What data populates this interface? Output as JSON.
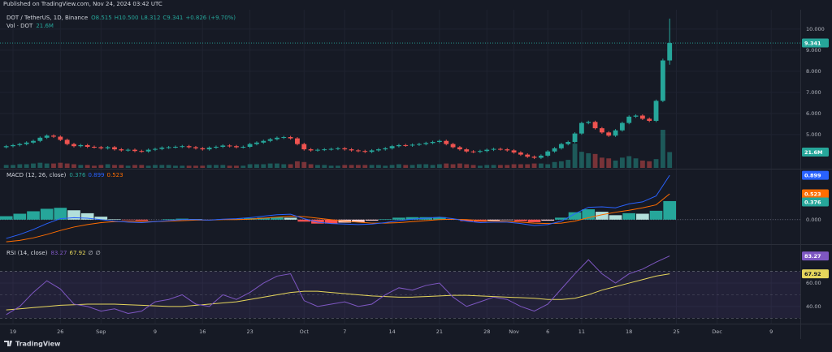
{
  "chart_data": [
    {
      "type": "candlestick",
      "header": "Published on TradingView.com, Nov 24, 2024 03:42 UTC",
      "title": "DOT / TetherUS, 1D, Binance",
      "ohlc_legend": [
        "O8.515",
        "H10.500",
        "L8.312",
        "C9.341",
        "+0.826 (+9.70%)"
      ],
      "footer": "TradingView",
      "xlim": [
        -0.92,
        117.3
      ],
      "xticks": [
        {
          "value": 1,
          "label": "19"
        },
        {
          "value": 8,
          "label": "26"
        },
        {
          "value": 14,
          "label": "Sep"
        },
        {
          "value": 22,
          "label": "9"
        },
        {
          "value": 29,
          "label": "16"
        },
        {
          "value": 36,
          "label": "23"
        },
        {
          "value": 44,
          "label": "Oct"
        },
        {
          "value": 50,
          "label": "7"
        },
        {
          "value": 57,
          "label": "14"
        },
        {
          "value": 64,
          "label": "21"
        },
        {
          "value": 71,
          "label": "28"
        },
        {
          "value": 75,
          "label": "Nov"
        },
        {
          "value": 80,
          "label": "6"
        },
        {
          "value": 85,
          "label": "11"
        },
        {
          "value": 92,
          "label": "18"
        },
        {
          "value": 99,
          "label": "25"
        },
        {
          "value": 105,
          "label": "Dec"
        },
        {
          "value": 113,
          "label": "9"
        }
      ],
      "ylim": [
        3.42,
        10.92
      ],
      "yticks": [
        {
          "value": 5,
          "label": "5.000"
        },
        {
          "value": 6,
          "label": "6.000"
        },
        {
          "value": 7,
          "label": "7.000"
        },
        {
          "value": 8,
          "label": "8.000"
        },
        {
          "value": 9,
          "label": "9.000"
        },
        {
          "value": 10,
          "label": "10.000"
        }
      ],
      "up_color": "#26a69a",
      "down_color": "#ef5350",
      "open": [
        4.4,
        4.45,
        4.5,
        4.55,
        4.62,
        4.7,
        4.85,
        4.95,
        4.9,
        4.75,
        4.55,
        4.45,
        4.5,
        4.42,
        4.4,
        4.35,
        4.4,
        4.3,
        4.25,
        4.28,
        4.22,
        4.2,
        4.28,
        4.32,
        4.38,
        4.4,
        4.42,
        4.45,
        4.4,
        4.35,
        4.3,
        4.38,
        4.42,
        4.48,
        4.45,
        4.4,
        4.42,
        4.55,
        4.62,
        4.7,
        4.78,
        4.85,
        4.88,
        4.82,
        4.55,
        4.3,
        4.25,
        4.28,
        4.3,
        4.32,
        4.35,
        4.3,
        4.25,
        4.22,
        4.18,
        4.25,
        4.3,
        4.35,
        4.45,
        4.5,
        4.48,
        4.52,
        4.55,
        4.6,
        4.65,
        4.7,
        4.55,
        4.4,
        4.3,
        4.2,
        4.18,
        4.22,
        4.28,
        4.32,
        4.3,
        4.25,
        4.15,
        4.05,
        3.95,
        3.9,
        4.0,
        4.2,
        4.35,
        4.55,
        4.65,
        5.05,
        5.55,
        5.6,
        5.3,
        5.1,
        4.95,
        5.2,
        5.55,
        5.85,
        5.9,
        5.75,
        5.65,
        6.6,
        8.515
      ],
      "high": [
        4.51,
        4.56,
        4.61,
        4.68,
        4.76,
        4.91,
        5.01,
        5.01,
        4.96,
        4.81,
        4.61,
        4.56,
        4.56,
        4.48,
        4.46,
        4.46,
        4.46,
        4.36,
        4.34,
        4.34,
        4.28,
        4.34,
        4.38,
        4.44,
        4.46,
        4.48,
        4.51,
        4.51,
        4.46,
        4.41,
        4.44,
        4.48,
        4.54,
        4.54,
        4.51,
        4.48,
        4.61,
        4.68,
        4.76,
        4.84,
        4.91,
        4.94,
        4.94,
        4.88,
        4.61,
        4.36,
        4.34,
        4.36,
        4.38,
        4.41,
        4.41,
        4.36,
        4.31,
        4.28,
        4.31,
        4.36,
        4.41,
        4.51,
        4.56,
        4.56,
        4.58,
        4.61,
        4.66,
        4.71,
        4.76,
        4.76,
        4.61,
        4.46,
        4.36,
        4.26,
        4.28,
        4.34,
        4.38,
        4.38,
        4.36,
        4.31,
        4.21,
        4.11,
        4.01,
        4.06,
        4.26,
        4.41,
        4.61,
        4.71,
        5.11,
        5.61,
        5.66,
        5.66,
        5.36,
        5.16,
        5.26,
        5.61,
        5.91,
        5.96,
        5.96,
        5.81,
        6.66,
        8.6,
        10.5
      ],
      "low": [
        4.34,
        4.39,
        4.44,
        4.49,
        4.56,
        4.64,
        4.79,
        4.84,
        4.69,
        4.49,
        4.39,
        4.39,
        4.36,
        4.34,
        4.29,
        4.29,
        4.24,
        4.19,
        4.19,
        4.16,
        4.14,
        4.14,
        4.22,
        4.26,
        4.32,
        4.34,
        4.36,
        4.34,
        4.29,
        4.24,
        4.24,
        4.32,
        4.36,
        4.39,
        4.34,
        4.34,
        4.36,
        4.49,
        4.56,
        4.64,
        4.72,
        4.79,
        4.76,
        4.49,
        4.24,
        4.19,
        4.19,
        4.22,
        4.24,
        4.26,
        4.24,
        4.19,
        4.16,
        4.12,
        4.12,
        4.19,
        4.24,
        4.29,
        4.39,
        4.42,
        4.42,
        4.46,
        4.49,
        4.54,
        4.59,
        4.49,
        4.34,
        4.24,
        4.14,
        4.12,
        4.12,
        4.16,
        4.22,
        4.24,
        4.19,
        4.09,
        3.99,
        3.89,
        3.84,
        3.84,
        3.94,
        4.14,
        4.29,
        4.49,
        4.59,
        4.99,
        5.49,
        5.24,
        5.04,
        4.89,
        4.89,
        5.14,
        5.49,
        5.79,
        5.69,
        5.59,
        5.59,
        6.54,
        8.312
      ],
      "close": [
        4.45,
        4.5,
        4.55,
        4.62,
        4.7,
        4.85,
        4.95,
        4.9,
        4.75,
        4.55,
        4.45,
        4.5,
        4.42,
        4.4,
        4.35,
        4.4,
        4.3,
        4.25,
        4.28,
        4.22,
        4.2,
        4.28,
        4.32,
        4.38,
        4.4,
        4.42,
        4.45,
        4.4,
        4.35,
        4.3,
        4.38,
        4.42,
        4.48,
        4.45,
        4.4,
        4.42,
        4.55,
        4.62,
        4.7,
        4.78,
        4.85,
        4.88,
        4.82,
        4.55,
        4.3,
        4.25,
        4.28,
        4.3,
        4.32,
        4.35,
        4.3,
        4.25,
        4.22,
        4.18,
        4.25,
        4.3,
        4.35,
        4.45,
        4.5,
        4.48,
        4.52,
        4.55,
        4.6,
        4.65,
        4.7,
        4.55,
        4.4,
        4.3,
        4.2,
        4.18,
        4.22,
        4.28,
        4.32,
        4.3,
        4.25,
        4.15,
        4.05,
        3.95,
        3.9,
        4.0,
        4.2,
        4.35,
        4.55,
        4.65,
        5.05,
        5.55,
        5.6,
        5.3,
        5.1,
        4.95,
        5.2,
        5.55,
        5.85,
        5.9,
        5.75,
        5.65,
        6.6,
        8.515,
        9.341
      ],
      "volume": {
        "name": "Vol · DOT",
        "vlim": [
          0,
          216
        ],
        "last_label": "21.6M",
        "values": [
          4,
          4,
          5,
          5,
          6,
          7,
          6,
          6,
          7,
          6,
          5,
          4,
          4,
          3,
          4,
          5,
          4,
          4,
          3,
          4,
          4,
          3,
          4,
          4,
          4,
          3,
          3,
          3,
          3,
          3,
          4,
          4,
          4,
          3,
          3,
          3,
          5,
          5,
          5,
          6,
          6,
          5,
          5,
          9,
          8,
          5,
          4,
          4,
          3,
          3,
          4,
          4,
          4,
          4,
          4,
          4,
          3,
          4,
          5,
          4,
          4,
          5,
          5,
          4,
          5,
          6,
          5,
          6,
          5,
          4,
          3,
          4,
          4,
          4,
          4,
          5,
          5,
          5,
          6,
          6,
          5,
          8,
          9,
          11,
          33,
          22,
          20,
          19,
          14,
          13,
          10,
          14,
          16,
          13,
          10,
          9,
          12,
          52,
          21.6
        ]
      }
    },
    {
      "type": "macd",
      "title": "MACD (12, 26, close)",
      "ylim": [
        -0.48,
        1.0
      ],
      "yticks": [
        {
          "value": 0,
          "label": "0.000"
        }
      ],
      "x": [
        0,
        2,
        4,
        6,
        8,
        10,
        12,
        14,
        16,
        18,
        20,
        22,
        24,
        26,
        28,
        30,
        32,
        34,
        36,
        38,
        40,
        42,
        44,
        46,
        48,
        50,
        52,
        54,
        56,
        58,
        60,
        62,
        64,
        66,
        68,
        70,
        72,
        74,
        76,
        78,
        80,
        82,
        84,
        86,
        88,
        90,
        92,
        94,
        96,
        98
      ],
      "histogram": {
        "color": "#26a69a",
        "values": [
          0.07,
          0.12,
          0.17,
          0.22,
          0.24,
          0.19,
          0.13,
          0.06,
          0.01,
          -0.01,
          -0.02,
          0.0,
          0.01,
          0.02,
          0.01,
          0.0,
          0.01,
          0.02,
          0.03,
          0.04,
          0.05,
          0.04,
          -0.04,
          -0.08,
          -0.08,
          -0.06,
          -0.05,
          -0.02,
          0.01,
          0.04,
          0.05,
          0.05,
          0.05,
          0.01,
          -0.03,
          -0.04,
          -0.02,
          -0.01,
          -0.03,
          -0.05,
          -0.02,
          0.04,
          0.15,
          0.21,
          0.16,
          0.09,
          0.13,
          0.12,
          0.18,
          0.376
        ]
      },
      "macd": {
        "color": "#2962ff",
        "values": [
          -0.38,
          -0.3,
          -0.2,
          -0.08,
          0.02,
          0.04,
          0.03,
          0.0,
          -0.03,
          -0.05,
          -0.06,
          -0.04,
          -0.02,
          0.0,
          0.0,
          -0.01,
          0.01,
          0.02,
          0.04,
          0.07,
          0.1,
          0.11,
          0.02,
          -0.05,
          -0.08,
          -0.09,
          -0.1,
          -0.09,
          -0.06,
          -0.02,
          0.01,
          0.03,
          0.05,
          0.02,
          -0.03,
          -0.06,
          -0.05,
          -0.05,
          -0.08,
          -0.12,
          -0.1,
          -0.03,
          0.12,
          0.25,
          0.26,
          0.24,
          0.32,
          0.36,
          0.48,
          0.899
        ]
      },
      "signal": {
        "color": "#ff6d00",
        "values": [
          -0.45,
          -0.42,
          -0.37,
          -0.3,
          -0.22,
          -0.15,
          -0.1,
          -0.06,
          -0.04,
          -0.04,
          -0.04,
          -0.04,
          -0.03,
          -0.02,
          -0.01,
          -0.01,
          0.0,
          0.0,
          0.01,
          0.03,
          0.05,
          0.07,
          0.06,
          0.03,
          0.0,
          -0.03,
          -0.05,
          -0.07,
          -0.07,
          -0.06,
          -0.04,
          -0.02,
          0.0,
          0.01,
          0.0,
          -0.02,
          -0.03,
          -0.04,
          -0.05,
          -0.07,
          -0.08,
          -0.07,
          -0.03,
          0.04,
          0.1,
          0.15,
          0.19,
          0.24,
          0.3,
          0.523
        ]
      }
    },
    {
      "type": "rsi",
      "title": "RSI (14, close)",
      "extra": [
        "∅",
        "∅"
      ],
      "ylim": [
        26,
        92
      ],
      "yticks": [
        {
          "value": 60,
          "label": "60.00"
        },
        {
          "value": 40,
          "label": "40.00"
        }
      ],
      "levels": [
        70,
        50,
        30
      ],
      "x": [
        0,
        2,
        4,
        6,
        8,
        10,
        12,
        14,
        16,
        18,
        20,
        22,
        24,
        26,
        28,
        30,
        32,
        34,
        36,
        38,
        40,
        42,
        44,
        46,
        48,
        50,
        52,
        54,
        56,
        58,
        60,
        62,
        64,
        66,
        68,
        70,
        72,
        74,
        76,
        78,
        80,
        82,
        84,
        86,
        88,
        90,
        92,
        94,
        96,
        98
      ],
      "rsi": {
        "color": "#7e57c2",
        "values": [
          33,
          40,
          52,
          62,
          55,
          42,
          40,
          36,
          38,
          34,
          36,
          44,
          46,
          50,
          42,
          40,
          50,
          46,
          52,
          60,
          66,
          68,
          45,
          40,
          42,
          44,
          40,
          42,
          50,
          56,
          54,
          58,
          60,
          48,
          40,
          44,
          48,
          46,
          40,
          36,
          42,
          55,
          68,
          80,
          68,
          60,
          68,
          72,
          78,
          83.27
        ]
      },
      "ma": {
        "color": "#e6d65c",
        "values": [
          37,
          38,
          39,
          40,
          41,
          41.5,
          42,
          42,
          42,
          41.5,
          41,
          40.5,
          40,
          40,
          41,
          42,
          43,
          44,
          46,
          48,
          50,
          52,
          53,
          53,
          52,
          51,
          50,
          49,
          48.5,
          48,
          48,
          48.5,
          49,
          49.5,
          49.5,
          49,
          48.5,
          48,
          47.5,
          47,
          46,
          46,
          47,
          50,
          54,
          57,
          60,
          63,
          66,
          67.92
        ]
      }
    }
  ]
}
